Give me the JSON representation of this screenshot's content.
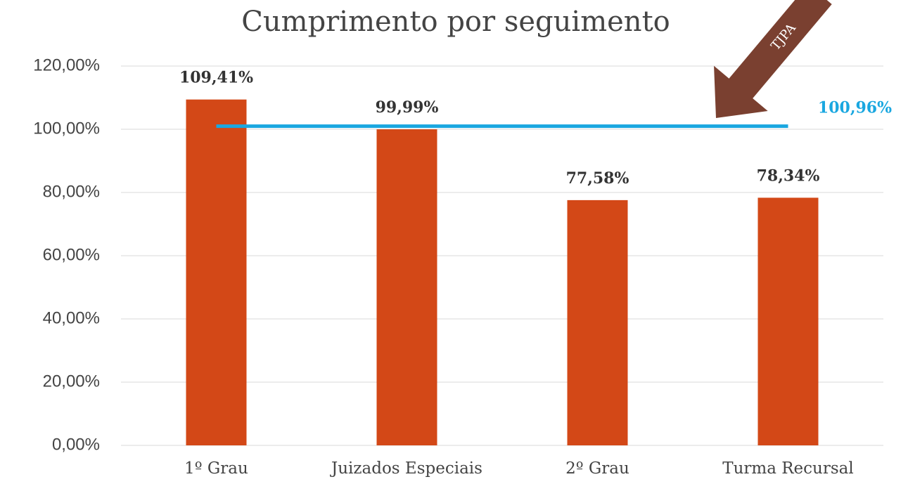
{
  "chart_data": {
    "type": "bar",
    "title": "Cumprimento por seguimento",
    "categories": [
      "1º Grau",
      "Juizados Especiais",
      "2º Grau",
      "Turma Recursal"
    ],
    "values": [
      109.41,
      99.99,
      77.58,
      78.34
    ],
    "value_labels": [
      "109,41%",
      "99,99%",
      "77,58%",
      "78,34%"
    ],
    "color": "#d34817",
    "ylim": [
      0,
      120
    ],
    "yticks": [
      {
        "value": 0,
        "label": "0,00%"
      },
      {
        "value": 20,
        "label": "20,00%"
      },
      {
        "value": 40,
        "label": "40,00%"
      },
      {
        "value": 60,
        "label": "60,00%"
      },
      {
        "value": 80,
        "label": "80,00%"
      },
      {
        "value": 100,
        "label": "100,00%"
      },
      {
        "value": 120,
        "label": "120,00%"
      }
    ],
    "grid": true,
    "reference_line": {
      "value": 100.96,
      "label": "100,96%",
      "color": "#1aa7e0"
    },
    "annotation": "TJPA"
  }
}
